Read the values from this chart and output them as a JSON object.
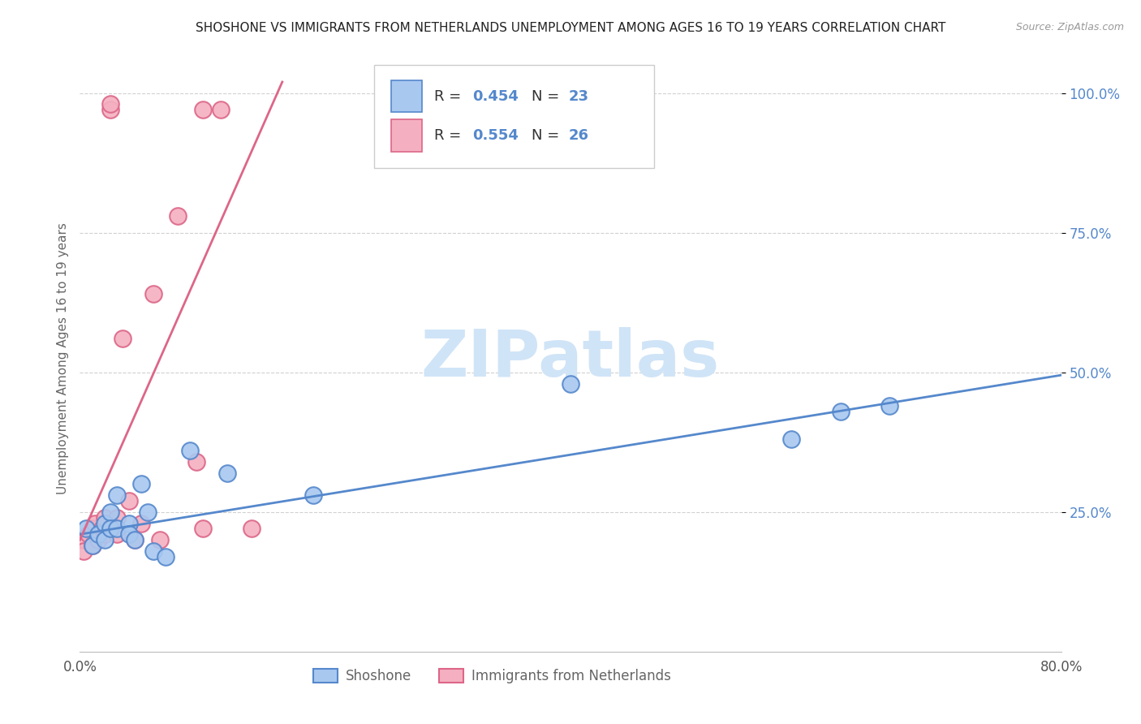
{
  "title": "SHOSHONE VS IMMIGRANTS FROM NETHERLANDS UNEMPLOYMENT AMONG AGES 16 TO 19 YEARS CORRELATION CHART",
  "source": "Source: ZipAtlas.com",
  "ylabel": "Unemployment Among Ages 16 to 19 years",
  "xlim": [
    0.0,
    0.8
  ],
  "ylim": [
    0.0,
    1.05
  ],
  "xticks": [
    0.0,
    0.2,
    0.4,
    0.6,
    0.8
  ],
  "xticklabels": [
    "0.0%",
    "",
    "",
    "",
    "80.0%"
  ],
  "yticks": [
    0.25,
    0.5,
    0.75,
    1.0
  ],
  "yticklabels": [
    "25.0%",
    "50.0%",
    "75.0%",
    "100.0%"
  ],
  "blue_R": 0.454,
  "blue_N": 23,
  "pink_R": 0.554,
  "pink_N": 26,
  "blue_color": "#a8c8f0",
  "pink_color": "#f4b0c0",
  "blue_line_color": "#5588cc",
  "pink_line_color": "#dd6688",
  "legend_label_blue": "Shoshone",
  "legend_label_pink": "Immigrants from Netherlands",
  "watermark": "ZIPatlas",
  "watermark_color": "#d0e4f7",
  "blue_x": [
    0.005,
    0.01,
    0.015,
    0.02,
    0.02,
    0.025,
    0.025,
    0.03,
    0.03,
    0.04,
    0.04,
    0.045,
    0.05,
    0.055,
    0.06,
    0.07,
    0.09,
    0.12,
    0.19,
    0.4,
    0.58,
    0.62,
    0.66
  ],
  "blue_y": [
    0.22,
    0.19,
    0.21,
    0.2,
    0.23,
    0.25,
    0.22,
    0.28,
    0.22,
    0.23,
    0.21,
    0.2,
    0.3,
    0.25,
    0.18,
    0.17,
    0.36,
    0.32,
    0.28,
    0.48,
    0.38,
    0.43,
    0.44
  ],
  "pink_x": [
    0.003,
    0.003,
    0.007,
    0.01,
    0.01,
    0.012,
    0.015,
    0.018,
    0.02,
    0.02,
    0.025,
    0.025,
    0.03,
    0.03,
    0.035,
    0.04,
    0.045,
    0.05,
    0.06,
    0.065,
    0.08,
    0.095,
    0.1,
    0.1,
    0.115,
    0.14
  ],
  "pink_y": [
    0.2,
    0.18,
    0.21,
    0.22,
    0.19,
    0.23,
    0.2,
    0.22,
    0.24,
    0.21,
    0.97,
    0.98,
    0.24,
    0.21,
    0.56,
    0.27,
    0.2,
    0.23,
    0.64,
    0.2,
    0.78,
    0.34,
    0.22,
    0.97,
    0.97,
    0.22
  ],
  "blue_trendline_x": [
    0.0,
    0.8
  ],
  "blue_trendline_y": [
    0.21,
    0.495
  ],
  "pink_trendline_x": [
    0.0,
    0.165
  ],
  "pink_trendline_y": [
    0.2,
    1.02
  ]
}
